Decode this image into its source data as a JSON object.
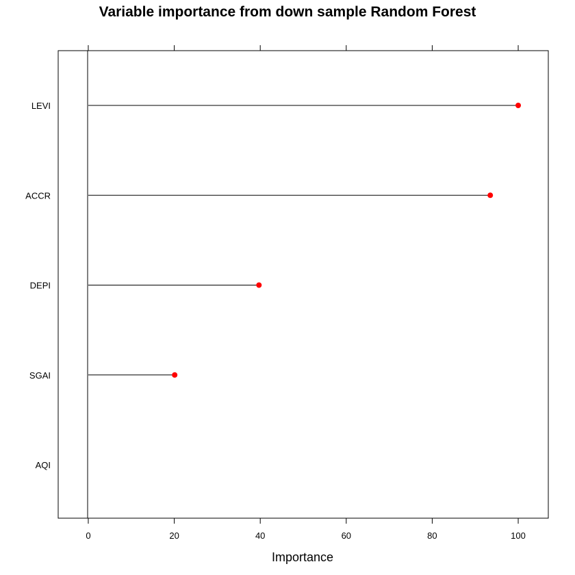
{
  "chart_data": {
    "type": "dotplot",
    "title": "Variable importance from down sample Random Forest",
    "xlabel": "Importance",
    "ylabel": "",
    "xlim": [
      -7,
      107
    ],
    "x_ticks": [
      0,
      20,
      40,
      60,
      80,
      100
    ],
    "x_tick_labels": [
      "0",
      "20",
      "40",
      "60",
      "80",
      "100"
    ],
    "grid": false,
    "legend": "none",
    "categories": [
      "LEVI",
      "ACCR",
      "DEPI",
      "SGAI",
      "AQI"
    ],
    "values": [
      100,
      93.5,
      39.7,
      20.1,
      0
    ],
    "colors": {
      "point": "#ff0000",
      "segment": "#000000",
      "axis": "#000000"
    }
  }
}
